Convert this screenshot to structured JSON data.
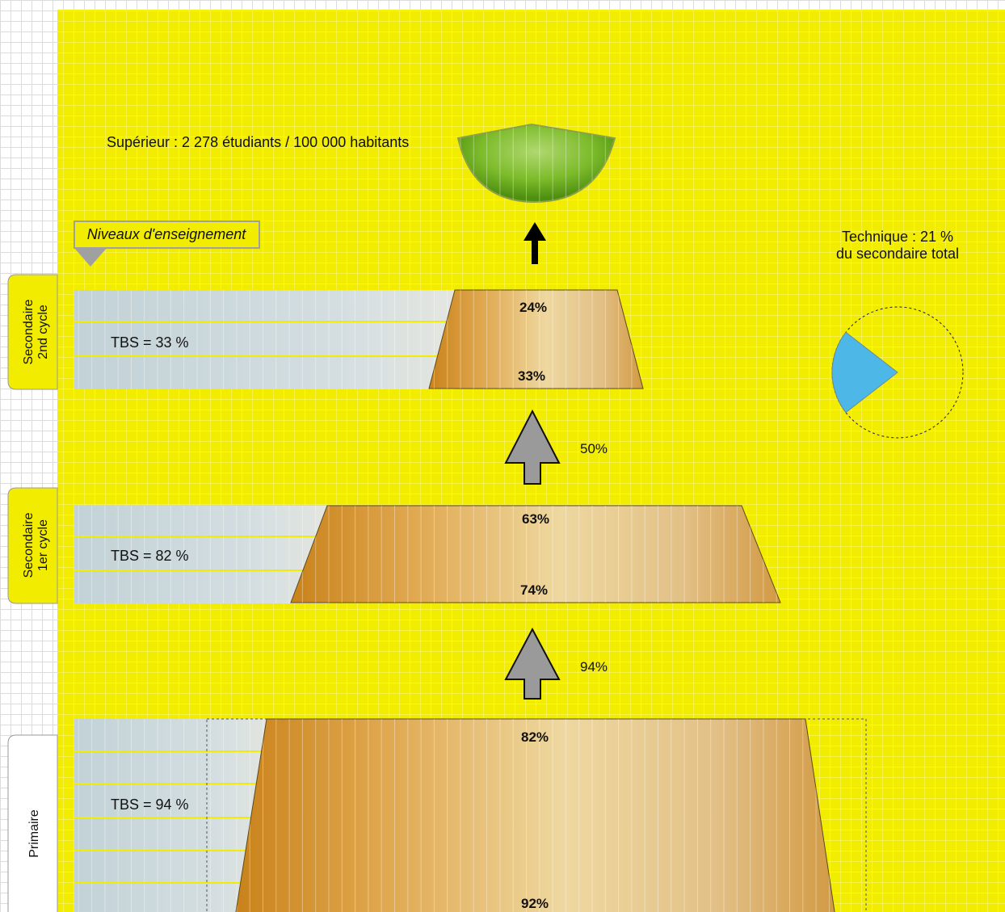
{
  "title": "Niveaux d'enseignement",
  "superieur": {
    "label": "Supérieur : 2 278 étudiants / 100 000 habitants"
  },
  "technique": {
    "line1": "Technique : 21 %",
    "line2": "du secondaire total",
    "share": 0.21
  },
  "levels": [
    {
      "key": "sec2",
      "tab_line1": "Secondaire",
      "tab_line2": "2nd cycle",
      "tbs": "TBS = 33 %",
      "top_pct": "24%",
      "bottom_pct": "33%"
    },
    {
      "key": "sec1",
      "tab_line1": "Secondaire",
      "tab_line2": "1er cycle",
      "tbs": "TBS = 82 %",
      "top_pct": "63%",
      "bottom_pct": "74%"
    },
    {
      "key": "prim",
      "tab_line1": "Primaire",
      "tab_line2": "",
      "tbs": "TBS = 94 %",
      "top_pct": "82%",
      "bottom_pct": "92%"
    }
  ],
  "transitions": [
    {
      "key": "sec1-to-sec2",
      "label": "50%"
    },
    {
      "key": "prim-to-sec1",
      "label": "94%"
    }
  ],
  "colors": {
    "panel": "#f2ec00",
    "bar": "#c6d6db",
    "trapezoid": "#dca24a",
    "cup": "#72b21c",
    "pie": "#4db8e8",
    "arrow": "#9a9a9a"
  }
}
